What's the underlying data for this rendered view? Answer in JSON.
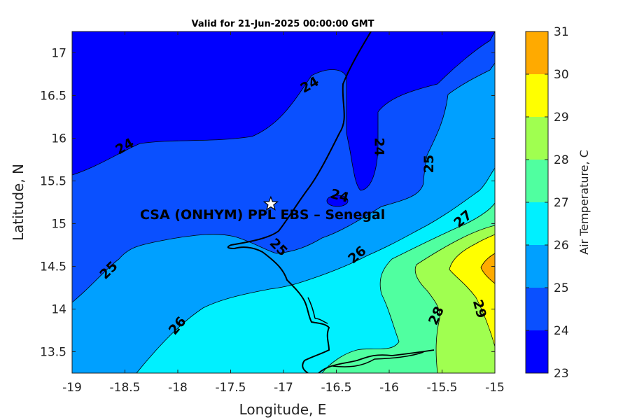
{
  "title": "Valid for 21-Jun-2025 00:00:00 GMT",
  "map": {
    "xlabel": "Longitude, E",
    "ylabel": "Latitude, N",
    "xlim": [
      -19,
      -15
    ],
    "ylim": [
      13.25,
      17.25
    ],
    "xticks": [
      "-19",
      "-18.5",
      "-18",
      "-17.5",
      "-17",
      "-16.5",
      "-16",
      "-15.5",
      "-15"
    ],
    "yticks": [
      "13.5",
      "14",
      "14.5",
      "15",
      "15.5",
      "16",
      "16.5",
      "17"
    ],
    "site_label": "CSA (ONHYM) PPL EBS  – Senegal",
    "site_marker": "star-icon",
    "site_lon": -17.12,
    "site_lat": 15.23,
    "contour_labels": [
      {
        "text": "24",
        "lon": -16.75,
        "lat": 16.62,
        "rot": -30
      },
      {
        "text": "24",
        "lon": -18.5,
        "lat": 15.9,
        "rot": -30
      },
      {
        "text": "24",
        "lon": -16.1,
        "lat": 15.9,
        "rot": 90
      },
      {
        "text": "24",
        "lon": -16.47,
        "lat": 15.32,
        "rot": 15
      },
      {
        "text": "25",
        "lon": -15.62,
        "lat": 15.7,
        "rot": -90
      },
      {
        "text": "25",
        "lon": -18.65,
        "lat": 14.45,
        "rot": -45
      },
      {
        "text": "25",
        "lon": -17.05,
        "lat": 14.72,
        "rot": 45
      },
      {
        "text": "26",
        "lon": -16.3,
        "lat": 14.63,
        "rot": -40
      },
      {
        "text": "26",
        "lon": -18.0,
        "lat": 13.8,
        "rot": -50
      },
      {
        "text": "27",
        "lon": -15.3,
        "lat": 15.05,
        "rot": -40
      },
      {
        "text": "28",
        "lon": -15.55,
        "lat": 13.92,
        "rot": -65
      },
      {
        "text": "29",
        "lon": -15.15,
        "lat": 14.0,
        "rot": 75
      }
    ]
  },
  "colorbar": {
    "label": "Air Temperature, C",
    "ticks": [
      "23",
      "24",
      "25",
      "26",
      "27",
      "28",
      "29",
      "30",
      "31"
    ],
    "min": 23,
    "max": 31,
    "colors": [
      "#0000ff",
      "#0a50ff",
      "#00a0ff",
      "#00f0ff",
      "#50ffa0",
      "#a0ff50",
      "#ffff00",
      "#ffaa00",
      "#ff5500"
    ]
  }
}
